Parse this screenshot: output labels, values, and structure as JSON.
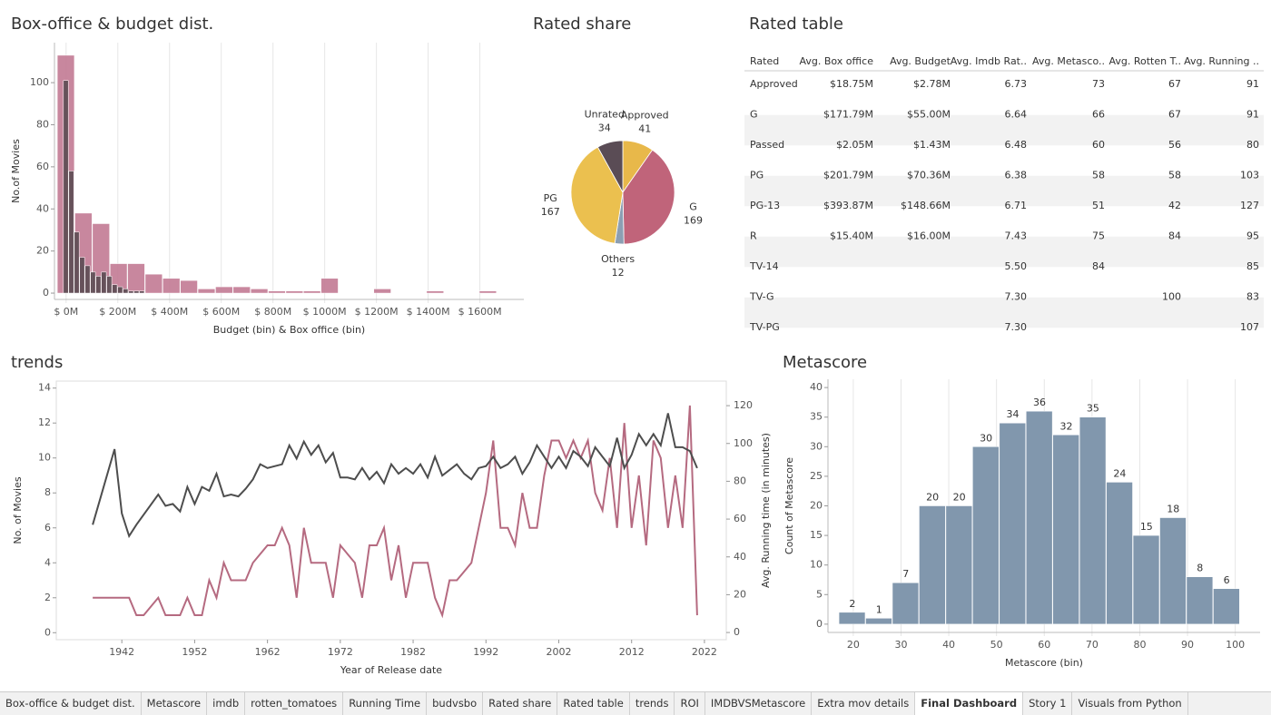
{
  "chart_data": [
    {
      "type": "histogram",
      "title": "Box-office & budget dist.",
      "xlabel": "Budget (bin) & Box office (bin)",
      "ylabel": "No.of Movies",
      "xlim": [
        -45,
        1770
      ],
      "xticks": [
        {
          "value": 0,
          "label": "$ 0M"
        },
        {
          "value": 200,
          "label": "$ 200M"
        },
        {
          "value": 400,
          "label": "$ 400M"
        },
        {
          "value": 600,
          "label": "$ 600M"
        },
        {
          "value": 800,
          "label": "$ 800M"
        },
        {
          "value": 1000,
          "label": "$ 1000M"
        },
        {
          "value": 1200,
          "label": "$ 1200M"
        },
        {
          "value": 1400,
          "label": "$ 1400M"
        },
        {
          "value": 1600,
          "label": "$ 1600M"
        }
      ],
      "ylim": [
        -3,
        119
      ],
      "yticks": [
        0,
        20,
        40,
        60,
        80,
        100
      ],
      "grid": "x",
      "series": [
        {
          "color": "#c27a93",
          "bins": [
            -34,
            34,
            102,
            170,
            238,
            306,
            374,
            442,
            510,
            578,
            646,
            714,
            782,
            850,
            918,
            986,
            1054,
            1122,
            1190,
            1258,
            1326,
            1394,
            1462,
            1530,
            1598,
            1666
          ],
          "values": [
            113,
            38,
            33,
            14,
            14,
            9,
            7,
            6,
            2,
            3,
            3,
            2,
            1,
            1,
            1,
            7,
            0,
            0,
            2,
            0,
            0,
            1,
            0,
            0,
            1
          ]
        },
        {
          "color": "#5b4b52",
          "bins": [
            -10.5,
            10.5,
            31.5,
            52.5,
            73.5,
            94.5,
            115.5,
            136.5,
            157.5,
            178.5,
            199.5,
            220.5,
            241.5,
            262.5,
            283.5,
            304.5
          ],
          "values": [
            101,
            58,
            29,
            17,
            13,
            10,
            8,
            10,
            8,
            4,
            3,
            2,
            1,
            1,
            1
          ]
        }
      ]
    },
    {
      "type": "pie",
      "title": "Rated share",
      "categories": [
        "Approved",
        "G",
        "Others",
        "PG",
        "Unrated"
      ],
      "values": [
        41,
        169,
        12,
        167,
        34
      ],
      "colors": [
        "#e8b84a",
        "#c0647a",
        "#8c9fb3",
        "#ebc04f",
        "#5a4c55"
      ]
    },
    {
      "type": "line",
      "title": "trends",
      "xlabel": "Year of Release date",
      "ylabel": "No. of Movies",
      "y2label": "Avg. Running time (in minutes)",
      "xlim": [
        1933,
        2025
      ],
      "xticks": [
        1942,
        1952,
        1962,
        1972,
        1982,
        1992,
        2002,
        2012,
        2022
      ],
      "ylim": [
        -0.4,
        14.4
      ],
      "yticks": [
        0,
        2,
        4,
        6,
        8,
        10,
        12,
        14
      ],
      "y2lim": [
        -3.8,
        133
      ],
      "y2ticks": [
        0,
        20,
        40,
        60,
        80,
        100,
        120
      ],
      "series": [
        {
          "color": "#b56a80",
          "axis": "y",
          "x": [
            1938,
            1943,
            1944,
            1945,
            1947,
            1948,
            1950,
            1951,
            1952,
            1953,
            1954,
            1955,
            1956,
            1957,
            1959,
            1960,
            1962,
            1963,
            1964,
            1965,
            1966,
            1967,
            1968,
            1970,
            1971,
            1972,
            1974,
            1975,
            1976,
            1977,
            1978,
            1979,
            1980,
            1981,
            1982,
            1984,
            1985,
            1986,
            1987,
            1988,
            1990,
            1992,
            1993,
            1994,
            1995,
            1996,
            1997,
            1998,
            1999,
            2000,
            2001,
            2002,
            2003,
            2004,
            2005,
            2006,
            2007,
            2008,
            2009,
            2010,
            2011,
            2012,
            2013,
            2014,
            2015,
            2016,
            2017,
            2018,
            2019,
            2020,
            2021
          ],
          "values": [
            2,
            2,
            1,
            1,
            2,
            1,
            1,
            2,
            1,
            1,
            3,
            2,
            4,
            3,
            3,
            4,
            5,
            5,
            6,
            5,
            2,
            6,
            4,
            4,
            2,
            5,
            4,
            2,
            5,
            5,
            6,
            3,
            5,
            2,
            4,
            4,
            2,
            1,
            3,
            3,
            4,
            8,
            11,
            6,
            6,
            5,
            8,
            6,
            6,
            9,
            11,
            11,
            10,
            11,
            10,
            11,
            8,
            7,
            10,
            6,
            12,
            6,
            9,
            5,
            11,
            10,
            6,
            9,
            6,
            13,
            1
          ]
        },
        {
          "color": "#4d4d4d",
          "axis": "y2",
          "x": [
            1938,
            1941,
            1942,
            1943,
            1944,
            1947,
            1948,
            1949,
            1950,
            1951,
            1952,
            1953,
            1954,
            1955,
            1956,
            1957,
            1958,
            1959,
            1960,
            1961,
            1962,
            1964,
            1965,
            1966,
            1967,
            1968,
            1969,
            1970,
            1971,
            1972,
            1973,
            1974,
            1975,
            1976,
            1977,
            1978,
            1979,
            1980,
            1981,
            1982,
            1983,
            1984,
            1985,
            1986,
            1988,
            1989,
            1990,
            1991,
            1992,
            1993,
            1994,
            1995,
            1996,
            1997,
            1998,
            1999,
            2000,
            2001,
            2002,
            2003,
            2004,
            2005,
            2006,
            2007,
            2008,
            2009,
            2010,
            2011,
            2012,
            2013,
            2014,
            2015,
            2016,
            2017,
            2018,
            2019,
            2020,
            2021
          ],
          "values": [
            57,
            97,
            63,
            51,
            57,
            73,
            67,
            68,
            64,
            77,
            68,
            77,
            75,
            84,
            72,
            73,
            72,
            76,
            81,
            89,
            87,
            89,
            99,
            92,
            101,
            94,
            99,
            90,
            95,
            82,
            82,
            81,
            87,
            81,
            85,
            79,
            89,
            84,
            87,
            84,
            89,
            82,
            93,
            83,
            89,
            84,
            81,
            87,
            88,
            93,
            87,
            89,
            93,
            84,
            90,
            99,
            93,
            87,
            93,
            87,
            96,
            93,
            88,
            98,
            93,
            88,
            103,
            87,
            94,
            105,
            99,
            105,
            99,
            116,
            98,
            98,
            96,
            87
          ]
        }
      ]
    },
    {
      "type": "histogram",
      "title": "Metascore",
      "xlabel": "Metascore (bin)",
      "ylabel": "Count of Metascore",
      "xlim": [
        14.7,
        105.2
      ],
      "xticks": [
        20,
        30,
        40,
        50,
        60,
        70,
        80,
        90,
        100
      ],
      "ylim": [
        -1.4,
        41.4
      ],
      "yticks": [
        0,
        5,
        10,
        15,
        20,
        25,
        30,
        35,
        40
      ],
      "grid": "x",
      "value_labels_shown": true,
      "color": "#8197ad",
      "bins": [
        17,
        22.6,
        28.2,
        33.8,
        39.4,
        45,
        50.6,
        56.2,
        61.8,
        67.4,
        73,
        78.6,
        84.2,
        89.8,
        95.4,
        101
      ],
      "values": [
        2,
        1,
        7,
        20,
        20,
        30,
        34,
        36,
        32,
        35,
        24,
        15,
        18,
        8,
        6
      ]
    }
  ],
  "table": {
    "title": "Rated table",
    "columns": [
      "Rated",
      "Avg. Box office",
      "Avg. Budget",
      "Avg. Imdb Rat..",
      "Avg. Metasco..",
      "Avg. Rotten T..",
      "Avg. Running .."
    ],
    "rows": [
      [
        "Approved",
        "$18.75M",
        "$2.78M",
        "6.73",
        "73",
        "67",
        "91"
      ],
      [
        "G",
        "$171.79M",
        "$55.00M",
        "6.64",
        "66",
        "67",
        "91"
      ],
      [
        "Passed",
        "$2.05M",
        "$1.43M",
        "6.48",
        "60",
        "56",
        "80"
      ],
      [
        "PG",
        "$201.79M",
        "$70.36M",
        "6.38",
        "58",
        "58",
        "103"
      ],
      [
        "PG-13",
        "$393.87M",
        "$148.66M",
        "6.71",
        "51",
        "42",
        "127"
      ],
      [
        "R",
        "$15.40M",
        "$16.00M",
        "7.43",
        "75",
        "84",
        "95"
      ],
      [
        "TV-14",
        null,
        null,
        "5.50",
        "84",
        null,
        "85"
      ],
      [
        "TV-G",
        null,
        null,
        "7.30",
        null,
        "100",
        "83"
      ],
      [
        "TV-PG",
        null,
        null,
        "7.30",
        null,
        null,
        "107"
      ]
    ]
  },
  "tabs": {
    "items": [
      "Box-office & budget dist.",
      "Metascore",
      "imdb",
      "rotten_tomatoes",
      "Running Time",
      "budvsbo",
      "Rated share",
      "Rated table",
      "trends",
      "ROI",
      "IMDBVSMetascore",
      "Extra mov details",
      "Final Dashboard",
      "Story 1",
      "Visuals from Python"
    ],
    "active": 12
  }
}
